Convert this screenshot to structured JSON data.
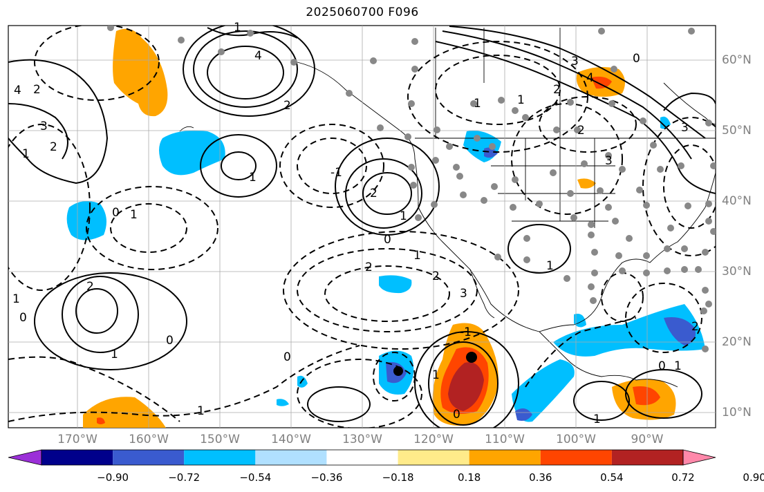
{
  "title": "2025060700 F096",
  "longitude_labels": [
    "170°W",
    "160°W",
    "150°W",
    "140°W",
    "130°W",
    "120°W",
    "110°W",
    "100°W",
    "90°W"
  ],
  "latitude_labels": [
    "60°N",
    "50°N",
    "40°N",
    "30°N",
    "20°N",
    "10°N"
  ],
  "contour_labels": {
    "solid": [
      "4",
      "2",
      "3",
      "1",
      "2",
      "1",
      "2",
      "1",
      "3",
      "1",
      "1",
      "2",
      "1",
      "1",
      "2",
      "3",
      "4",
      "1",
      "1"
    ],
    "dashed": [
      "0",
      "1",
      "0",
      "2",
      "0",
      "-1",
      "0",
      "1",
      "2",
      "3",
      "2",
      "1",
      "0",
      "1",
      "3",
      "-1",
      "0",
      "1",
      "2",
      "0",
      "4",
      "2",
      "1",
      "0"
    ]
  },
  "colorbar": {
    "ticks": [
      "−0.90",
      "−0.72",
      "−0.54",
      "−0.36",
      "−0.18",
      "0.18",
      "0.36",
      "0.54",
      "0.72",
      "0.90"
    ],
    "colors": [
      "#9b30d8",
      "#00008b",
      "#3a5bcf",
      "#00bfff",
      "#b0e0ff",
      "#ffffff",
      "#ffeb8a",
      "#ffa500",
      "#ff4500",
      "#b22222",
      "#ff88aa"
    ]
  }
}
